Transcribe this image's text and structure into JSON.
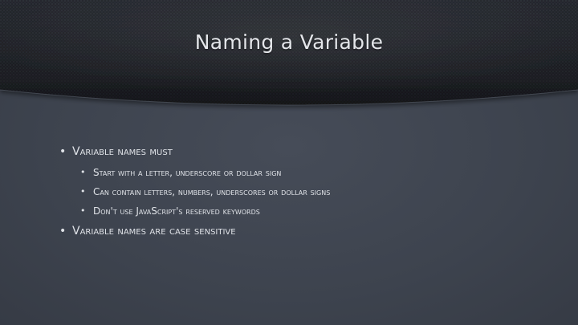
{
  "slide": {
    "title": "Naming a Variable",
    "colors": {
      "background": "#3e4450",
      "banner": "#23262c",
      "text": "#dfe2e7"
    },
    "bullet_glyph": "•",
    "bullets": [
      {
        "text": "Variable names must",
        "sub": [
          {
            "text": "Start with a letter, underscore or dollar sign"
          },
          {
            "text": "Can contain letters, numbers, underscores or dollar signs"
          },
          {
            "text": "Don't use JavaScript's reserved keywords"
          }
        ]
      },
      {
        "text": "Variable names are case sensitive"
      }
    ]
  }
}
